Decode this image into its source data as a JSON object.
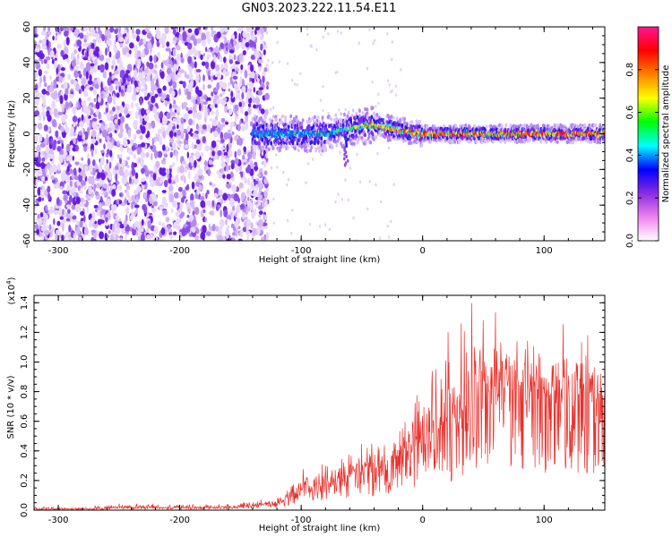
{
  "title": "GN03.2023.222.11.54.E11",
  "chart_data": [
    {
      "type": "heatmap",
      "name": "spectrogram",
      "xlabel": "Height of straight line (km)",
      "ylabel": "Frequency (Hz)",
      "xlim": [
        -320,
        150
      ],
      "ylim": [
        -60,
        60
      ],
      "x_ticks": [
        -300,
        -200,
        -100,
        0,
        100
      ],
      "y_ticks": [
        -60,
        -40,
        -20,
        0,
        20,
        40,
        60
      ],
      "colorbar": {
        "label": "Normalized spectral amplitude",
        "range": [
          0.0,
          1.0
        ],
        "ticks": [
          "0.0",
          "0.2",
          "0.4",
          "0.6",
          "0.8"
        ],
        "tick_values": [
          0.0,
          0.2,
          0.4,
          0.6,
          0.8
        ],
        "colors": [
          "#ffffff",
          "#ee82ee",
          "#8a2be2",
          "#0000ff",
          "#00ffff",
          "#00ff00",
          "#ffff00",
          "#ff8000",
          "#ff0000",
          "#ff1493"
        ]
      },
      "noise_region_x": [
        -320,
        -135
      ],
      "signal_track": [
        {
          "x": -140,
          "f": 0,
          "amp": 0.45
        },
        {
          "x": -120,
          "f": 0,
          "amp": 0.5
        },
        {
          "x": -100,
          "f": 0,
          "amp": 0.5
        },
        {
          "x": -80,
          "f": 0,
          "amp": 0.55
        },
        {
          "x": -60,
          "f": 3,
          "amp": 0.65
        },
        {
          "x": -40,
          "f": 5,
          "amp": 0.8
        },
        {
          "x": -20,
          "f": 2,
          "amp": 0.85
        },
        {
          "x": 0,
          "f": 0,
          "amp": 0.85
        },
        {
          "x": 20,
          "f": 0,
          "amp": 0.95
        },
        {
          "x": 40,
          "f": 0,
          "amp": 0.9
        },
        {
          "x": 60,
          "f": 0,
          "amp": 0.85
        },
        {
          "x": 80,
          "f": 0,
          "amp": 0.95
        },
        {
          "x": 100,
          "f": 0,
          "amp": 0.9
        },
        {
          "x": 120,
          "f": 0,
          "amp": 0.9
        },
        {
          "x": 150,
          "f": 0,
          "amp": 0.9
        }
      ]
    },
    {
      "type": "line",
      "name": "snr",
      "xlabel": "Height of straight line (km)",
      "ylabel": "SNR (10 * v/v)",
      "yscale_label": "(x10^4)",
      "xlim": [
        -320,
        150
      ],
      "ylim": [
        0,
        1.45
      ],
      "x_ticks": [
        -300,
        -200,
        -100,
        0,
        100
      ],
      "y_ticks": [
        0.0,
        0.2,
        0.4,
        0.6,
        0.8,
        1.0,
        1.2,
        1.4
      ],
      "y_tick_labels": [
        "0.0",
        "0.2",
        "0.4",
        "0.6",
        "0.8",
        "1.0",
        "1.2",
        "1.4"
      ],
      "color": "#e8332e",
      "envelope": {
        "x": [
          -320,
          -260,
          -250,
          -200,
          -160,
          -140,
          -120,
          -110,
          -100,
          -80,
          -60,
          -40,
          -20,
          0,
          20,
          40,
          60,
          80,
          100,
          120,
          150
        ],
        "mean": [
          0.005,
          0.01,
          0.02,
          0.015,
          0.02,
          0.03,
          0.05,
          0.08,
          0.12,
          0.18,
          0.22,
          0.27,
          0.35,
          0.42,
          0.52,
          0.75,
          0.8,
          0.8,
          0.72,
          0.72,
          0.7
        ],
        "max": [
          0.02,
          0.03,
          0.05,
          0.04,
          0.04,
          0.06,
          0.1,
          0.14,
          0.3,
          0.32,
          0.38,
          0.55,
          0.68,
          0.85,
          1.2,
          1.45,
          1.35,
          1.25,
          1.15,
          1.3,
          1.2
        ]
      }
    }
  ]
}
